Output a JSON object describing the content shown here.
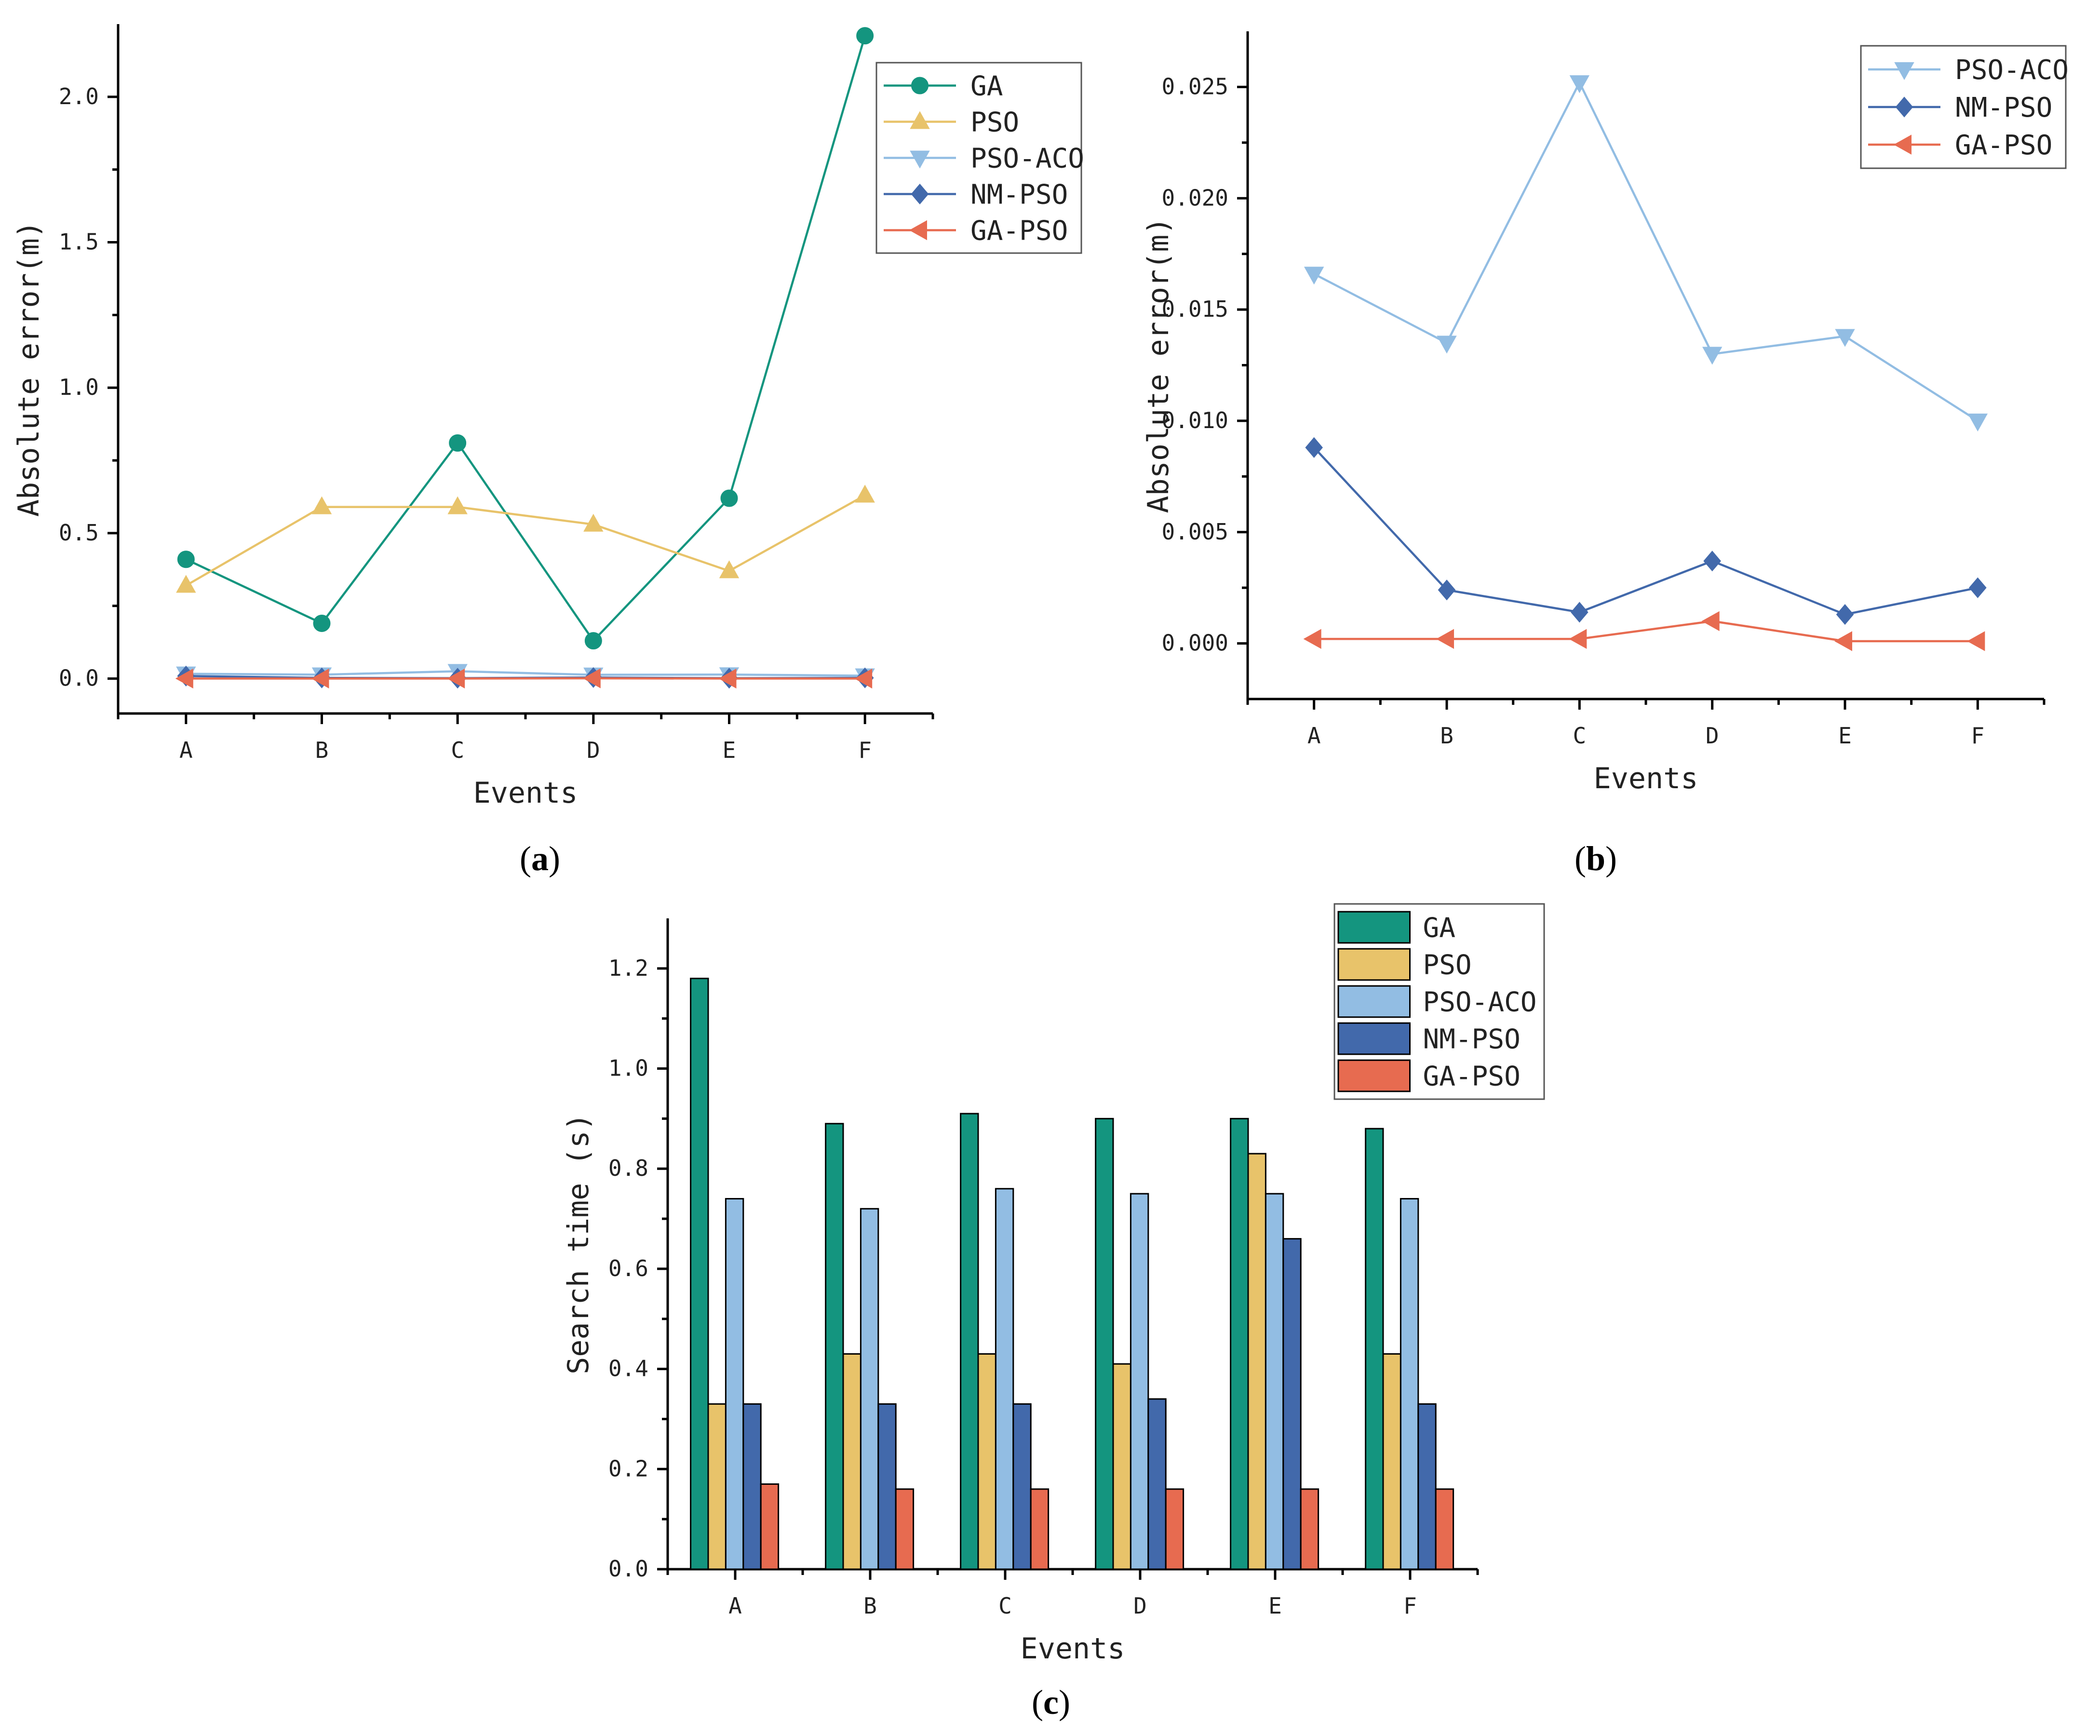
{
  "colors": {
    "GA": "#14957f",
    "PSO": "#e8c36a",
    "PSO-ACO": "#92bde3",
    "NM-PSO": "#4269ab",
    "GA-PSO": "#e76b50"
  },
  "chart_data": [
    {
      "id": "a",
      "type": "line",
      "caption": "(a)",
      "xlabel": "Events",
      "ylabel": "Absolute error(m)",
      "categories": [
        "A",
        "B",
        "C",
        "D",
        "E",
        "F"
      ],
      "ylim": [
        -0.12,
        2.25
      ],
      "yticks": [
        0.0,
        0.5,
        1.0,
        1.5,
        2.0
      ],
      "ytick_labels": [
        "0.0",
        "0.5",
        "1.0",
        "1.5",
        "2.0"
      ],
      "legend_position": "top-right",
      "series": [
        {
          "name": "GA",
          "marker": "circle",
          "values": [
            0.41,
            0.19,
            0.81,
            0.13,
            0.62,
            2.21
          ]
        },
        {
          "name": "PSO",
          "marker": "triangle-up",
          "values": [
            0.32,
            0.59,
            0.59,
            0.53,
            0.37,
            0.63
          ]
        },
        {
          "name": "PSO-ACO",
          "marker": "triangle-down",
          "values": [
            0.0166,
            0.0135,
            0.0252,
            0.013,
            0.0138,
            0.01
          ]
        },
        {
          "name": "NM-PSO",
          "marker": "diamond",
          "values": [
            0.0088,
            0.0024,
            0.0014,
            0.0037,
            0.0013,
            0.0025
          ]
        },
        {
          "name": "GA-PSO",
          "marker": "triangle-left",
          "values": [
            0.0002,
            0.0002,
            0.0002,
            0.001,
            0.0001,
            0.0001
          ]
        }
      ]
    },
    {
      "id": "b",
      "type": "line",
      "caption": "(b)",
      "xlabel": "Events",
      "ylabel": "Absolute error(m)",
      "categories": [
        "A",
        "B",
        "C",
        "D",
        "E",
        "F"
      ],
      "ylim": [
        -0.0025,
        0.0275
      ],
      "yticks": [
        0.0,
        0.005,
        0.01,
        0.015,
        0.02,
        0.025
      ],
      "ytick_labels": [
        "0.000",
        "0.005",
        "0.010",
        "0.015",
        "0.020",
        "0.025"
      ],
      "legend_position": "top-right",
      "series": [
        {
          "name": "PSO-ACO",
          "marker": "triangle-down",
          "values": [
            0.0166,
            0.0135,
            0.0252,
            0.013,
            0.0138,
            0.01
          ]
        },
        {
          "name": "NM-PSO",
          "marker": "diamond",
          "values": [
            0.0088,
            0.0024,
            0.0014,
            0.0037,
            0.0013,
            0.0025
          ]
        },
        {
          "name": "GA-PSO",
          "marker": "triangle-left",
          "values": [
            0.0002,
            0.0002,
            0.0002,
            0.001,
            0.0001,
            0.0001
          ]
        }
      ]
    },
    {
      "id": "c",
      "type": "bar",
      "caption": "(c)",
      "xlabel": "Events",
      "ylabel": "Search time (s)",
      "categories": [
        "A",
        "B",
        "C",
        "D",
        "E",
        "F"
      ],
      "ylim": [
        0,
        1.3
      ],
      "yticks": [
        0.0,
        0.2,
        0.4,
        0.6,
        0.8,
        1.0,
        1.2
      ],
      "ytick_labels": [
        "0.0",
        "0.2",
        "0.4",
        "0.6",
        "0.8",
        "1.0",
        "1.2"
      ],
      "legend_position": "top-right",
      "series": [
        {
          "name": "GA",
          "values": [
            1.18,
            0.89,
            0.91,
            0.9,
            0.9,
            0.88
          ]
        },
        {
          "name": "PSO",
          "values": [
            0.33,
            0.43,
            0.43,
            0.41,
            0.83,
            0.43
          ]
        },
        {
          "name": "PSO-ACO",
          "values": [
            0.74,
            0.72,
            0.76,
            0.75,
            0.75,
            0.74
          ]
        },
        {
          "name": "NM-PSO",
          "values": [
            0.33,
            0.33,
            0.33,
            0.34,
            0.66,
            0.33
          ]
        },
        {
          "name": "GA-PSO",
          "values": [
            0.17,
            0.16,
            0.16,
            0.16,
            0.16,
            0.16
          ]
        }
      ]
    }
  ]
}
